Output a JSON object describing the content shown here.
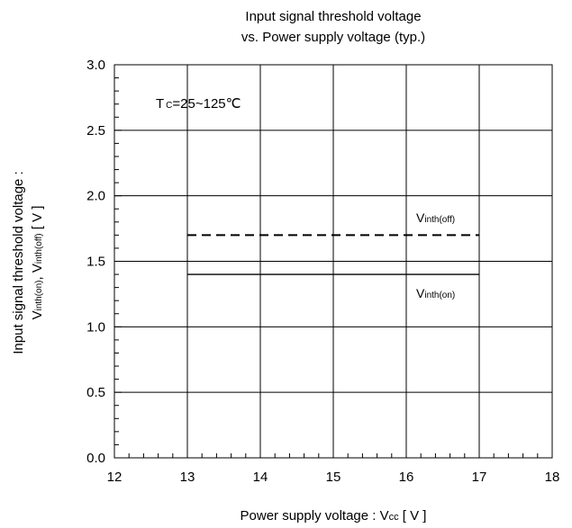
{
  "chart_data": {
    "type": "line",
    "title_line1": "Input signal threshold voltage",
    "title_line2": "vs. Power supply voltage (typ.)",
    "xlabel_main": "Power supply voltage : V",
    "xlabel_sub": "cc",
    "xlabel_tail": " [ V ]",
    "ylabel_line1": "Input signal threshold voltage :",
    "ylabel_l2_a": "V",
    "ylabel_l2_b": "inth(on)",
    "ylabel_l2_c": ", V",
    "ylabel_l2_d": "inth(off)",
    "ylabel_l2_e": " [ V ]",
    "xlim": [
      12,
      18
    ],
    "ylim": [
      0.0,
      3.0
    ],
    "x_ticks": [
      12,
      13,
      14,
      15,
      16,
      17,
      18
    ],
    "x_tick_labels": [
      "12",
      "13",
      "14",
      "15",
      "16",
      "17",
      "18"
    ],
    "y_ticks": [
      0.0,
      0.5,
      1.0,
      1.5,
      2.0,
      2.5,
      3.0
    ],
    "y_tick_labels": [
      "0.0",
      "0.5",
      "1.0",
      "1.5",
      "2.0",
      "2.5",
      "3.0"
    ],
    "grid": true,
    "condition_label": {
      "T": "T",
      "sub": "C",
      "rest": "=25~125℃"
    },
    "series": [
      {
        "name_main": "V",
        "name_sub": "inth(off)",
        "style": "dashed",
        "x": [
          13,
          17
        ],
        "y": [
          1.7,
          1.7
        ]
      },
      {
        "name_main": "V",
        "name_sub": "inth(on)",
        "style": "solid",
        "x": [
          13,
          17
        ],
        "y": [
          1.4,
          1.4
        ]
      }
    ]
  }
}
